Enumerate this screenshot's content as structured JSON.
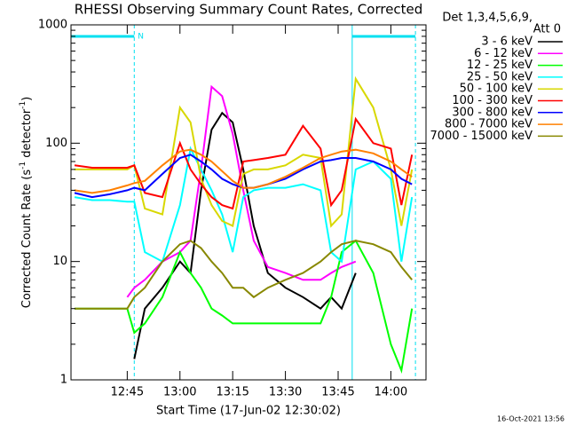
{
  "chart_data": {
    "type": "line",
    "title": "RHESSI Observing Summary Count Rates, Corrected",
    "xlabel": "Start Time (17-Jun-02 12:30:02)",
    "ylabel": [
      "Corrected Count Rate (s",
      "-1",
      " detector",
      "-1",
      ")"
    ],
    "legend_header": [
      "Det 1,3,4,5,6,9,",
      "Att 0"
    ],
    "footer": "16-Oct-2021 13:56",
    "log_y": true,
    "ylim": [
      1,
      1000
    ],
    "yticks": [
      1,
      10,
      100,
      1000
    ],
    "xlim": [
      "12:29",
      "14:10"
    ],
    "xticks": [
      "12:45",
      "13:00",
      "13:15",
      "13:30",
      "13:45",
      "14:00"
    ],
    "night": [
      {
        "start": "12:29",
        "end": "12:47",
        "label": "N"
      },
      {
        "start": "13:49",
        "end": "14:07"
      }
    ],
    "night_color": "#00e0f0",
    "x": [
      "12:30",
      "12:35",
      "12:40",
      "12:45",
      "12:47",
      "12:50",
      "12:55",
      "13:00",
      "13:03",
      "13:06",
      "13:09",
      "13:12",
      "13:15",
      "13:18",
      "13:21",
      "13:25",
      "13:30",
      "13:35",
      "13:40",
      "13:43",
      "13:46",
      "13:50",
      "13:55",
      "14:00",
      "14:03",
      "14:06"
    ],
    "series": [
      {
        "name": "3 - 6 keV",
        "color": "#000000",
        "values": [
          null,
          null,
          null,
          null,
          1.5,
          4,
          6,
          10,
          8,
          40,
          130,
          180,
          150,
          60,
          20,
          8,
          6,
          5,
          4,
          5,
          4,
          8,
          null,
          null,
          null,
          null
        ]
      },
      {
        "name": "6 - 12 keV",
        "color": "#ff00ff",
        "values": [
          null,
          null,
          null,
          5,
          6,
          7,
          10,
          12,
          15,
          60,
          300,
          250,
          120,
          40,
          15,
          9,
          8,
          7,
          7,
          8,
          9,
          10,
          null,
          null,
          null,
          null
        ]
      },
      {
        "name": "12 - 25 keV",
        "color": "#00ff00",
        "values": [
          4,
          4,
          4,
          4,
          2.5,
          3,
          5,
          12,
          8,
          6,
          4,
          3.5,
          3,
          3,
          3,
          3,
          3,
          3,
          3,
          5,
          12,
          15,
          8,
          2,
          1.2,
          4
        ]
      },
      {
        "name": "25 - 50 keV",
        "color": "#00ffff",
        "values": [
          35,
          33,
          33,
          32,
          32,
          12,
          10,
          30,
          90,
          60,
          40,
          25,
          12,
          35,
          40,
          42,
          42,
          45,
          40,
          12,
          10,
          60,
          70,
          50,
          10,
          35
        ]
      },
      {
        "name": "50 - 100 keV",
        "color": "#d8d800",
        "values": [
          60,
          60,
          60,
          60,
          65,
          28,
          25,
          200,
          150,
          50,
          30,
          22,
          20,
          55,
          60,
          60,
          65,
          80,
          75,
          20,
          25,
          350,
          200,
          60,
          20,
          60
        ]
      },
      {
        "name": "100 - 300 keV",
        "color": "#ff0000",
        "values": [
          65,
          62,
          62,
          62,
          65,
          38,
          35,
          100,
          60,
          45,
          35,
          30,
          28,
          70,
          72,
          75,
          80,
          140,
          90,
          30,
          40,
          160,
          100,
          90,
          30,
          80
        ]
      },
      {
        "name": "300 - 800 keV",
        "color": "#0000ff",
        "values": [
          38,
          35,
          37,
          40,
          42,
          40,
          55,
          75,
          80,
          70,
          60,
          50,
          45,
          42,
          42,
          45,
          50,
          60,
          70,
          72,
          75,
          75,
          70,
          60,
          50,
          45
        ]
      },
      {
        "name": "800 - 7000 keV",
        "color": "#ff8000",
        "values": [
          40,
          38,
          40,
          44,
          46,
          48,
          65,
          85,
          88,
          80,
          70,
          58,
          48,
          42,
          42,
          45,
          52,
          62,
          75,
          80,
          85,
          88,
          82,
          70,
          60,
          52
        ]
      },
      {
        "name": "7000 - 15000 keV",
        "color": "#888800",
        "values": [
          4,
          4,
          4,
          4,
          5,
          6,
          10,
          14,
          15,
          13,
          10,
          8,
          6,
          6,
          5,
          6,
          7,
          8,
          10,
          12,
          14,
          15,
          14,
          12,
          9,
          7
        ]
      }
    ]
  }
}
